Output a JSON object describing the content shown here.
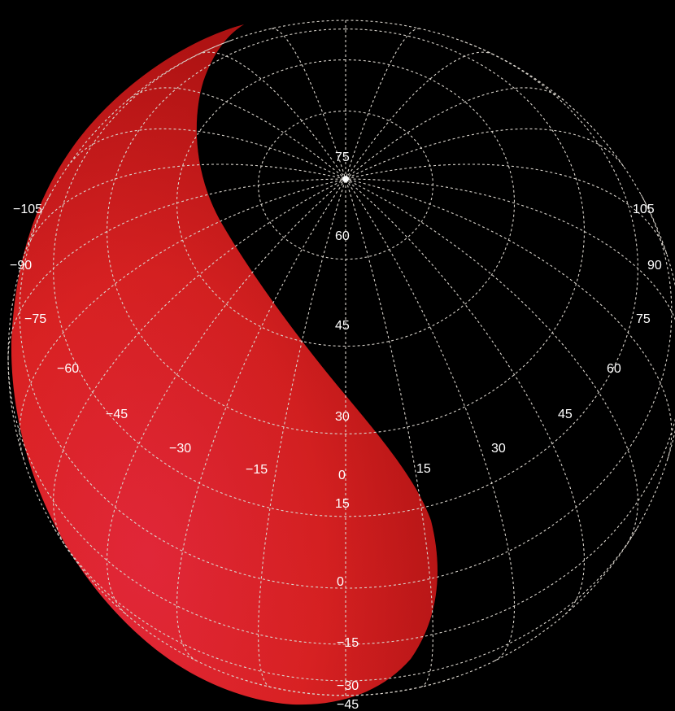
{
  "colors": {
    "background": "#000000",
    "grid": "#d9d4cc",
    "labels": "#ffffff",
    "region_fill_light": "#e3283a",
    "region_fill_dark": "#b51414"
  },
  "grid": {
    "longitude_step_deg": 15,
    "latitude_step_deg": 15,
    "style": "dashed"
  },
  "longitude_labels": [
    "−105",
    "−90",
    "−75",
    "−60",
    "−45",
    "−30",
    "−15",
    "0",
    "15",
    "30",
    "45",
    "60",
    "75",
    "90",
    "105"
  ],
  "latitude_labels": [
    "75",
    "60",
    "45",
    "30",
    "15",
    "0",
    "−15",
    "−30",
    "−45"
  ],
  "shaded_region": {
    "color": "red",
    "description_side": "western"
  }
}
